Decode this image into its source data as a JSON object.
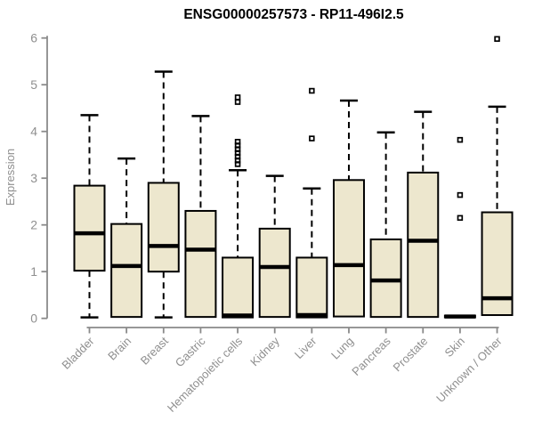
{
  "chart_data": {
    "type": "boxplot",
    "title": "ENSG00000257573 - RP11-496I2.5",
    "xlabel": "",
    "ylabel": "Expression",
    "ylim": [
      0,
      6
    ],
    "yticks": [
      0,
      1,
      2,
      3,
      4,
      5,
      6
    ],
    "grid": false,
    "legend": "none",
    "categories": [
      "Bladder",
      "Brain",
      "Breast",
      "Gastric",
      "Hematopoietic cells",
      "Kidney",
      "Liver",
      "Lung",
      "Pancreas",
      "Prostate",
      "Skin",
      "Unknown / Other"
    ],
    "series": [
      {
        "name": "Bladder",
        "whisker_low": 0.02,
        "q1": 1.02,
        "median": 1.82,
        "q3": 2.84,
        "whisker_high": 4.35,
        "outliers": []
      },
      {
        "name": "Brain",
        "whisker_low": 0.03,
        "q1": 0.03,
        "median": 1.12,
        "q3": 2.02,
        "whisker_high": 3.42,
        "outliers": []
      },
      {
        "name": "Breast",
        "whisker_low": 0.02,
        "q1": 1.0,
        "median": 1.55,
        "q3": 2.9,
        "whisker_high": 5.28,
        "outliers": []
      },
      {
        "name": "Gastric",
        "whisker_low": 0.03,
        "q1": 0.03,
        "median": 1.47,
        "q3": 2.3,
        "whisker_high": 4.33,
        "outliers": []
      },
      {
        "name": "Hematopoietic cells",
        "whisker_low": 0.02,
        "q1": 0.02,
        "median": 0.06,
        "q3": 1.3,
        "whisker_high": 3.17,
        "outliers": [
          3.3,
          3.38,
          3.46,
          3.54,
          3.62,
          3.7,
          3.78,
          4.63,
          4.73
        ]
      },
      {
        "name": "Kidney",
        "whisker_low": 0.03,
        "q1": 0.03,
        "median": 1.1,
        "q3": 1.92,
        "whisker_high": 3.05,
        "outliers": []
      },
      {
        "name": "Liver",
        "whisker_low": 0.02,
        "q1": 0.02,
        "median": 0.07,
        "q3": 1.3,
        "whisker_high": 2.78,
        "outliers": [
          3.85,
          4.87
        ]
      },
      {
        "name": "Lung",
        "whisker_low": 0.04,
        "q1": 0.04,
        "median": 1.14,
        "q3": 2.96,
        "whisker_high": 4.66,
        "outliers": []
      },
      {
        "name": "Pancreas",
        "whisker_low": 0.03,
        "q1": 0.03,
        "median": 0.81,
        "q3": 1.69,
        "whisker_high": 3.98,
        "outliers": []
      },
      {
        "name": "Prostate",
        "whisker_low": 0.03,
        "q1": 0.03,
        "median": 1.66,
        "q3": 3.12,
        "whisker_high": 4.42,
        "outliers": []
      },
      {
        "name": "Skin",
        "whisker_low": 0.02,
        "q1": 0.02,
        "median": 0.04,
        "q3": 0.06,
        "whisker_high": 0.06,
        "outliers": [
          2.15,
          2.64,
          3.82
        ]
      },
      {
        "name": "Unknown / Other",
        "whisker_low": 0.07,
        "q1": 0.07,
        "median": 0.43,
        "q3": 2.27,
        "whisker_high": 4.53,
        "outliers": [
          5.98
        ]
      }
    ],
    "colors": {
      "box_fill": "#EDE7CE",
      "box_stroke": "#000000",
      "median": "#000000",
      "whisker": "#000000",
      "outlier_stroke": "#000000",
      "axis": "#8a8a8a",
      "tick_text": "#8f8f8f",
      "title": "#000000",
      "background": "#ffffff"
    }
  }
}
